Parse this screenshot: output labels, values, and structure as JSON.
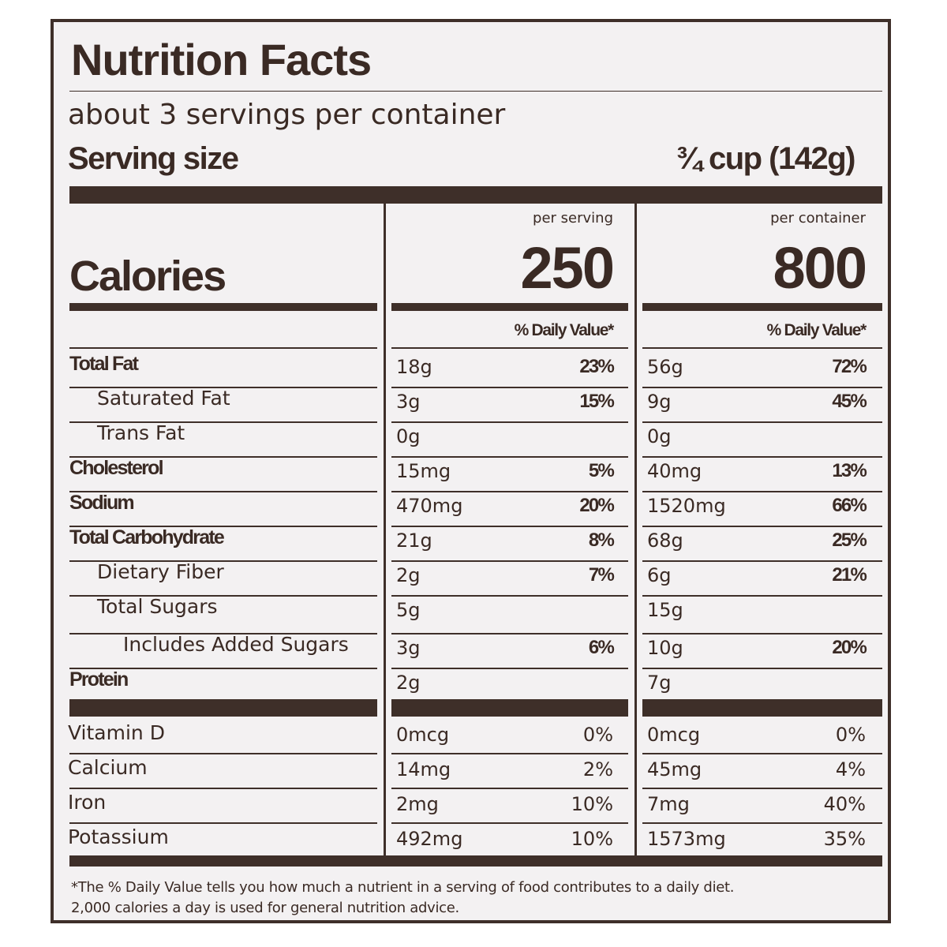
{
  "label": {
    "title": "Nutrition Facts",
    "servings_per_container": "about 3 servings per container",
    "serving_size_label": "Serving size",
    "serving_size_value": "¾ cup (142g)",
    "per_serving_label": "per serving",
    "per_container_label": "per container",
    "calories_label": "Calories",
    "calories_per_serving": "250",
    "calories_per_container": "800",
    "daily_value_header": "% Daily Value*",
    "nutrients": [
      {
        "name": "Total Fat",
        "serving_amount": "18g",
        "serving_dv": "23%",
        "container_amount": "56g",
        "container_dv": "72%"
      },
      {
        "name": "Saturated Fat",
        "serving_amount": "3g",
        "serving_dv": "15%",
        "container_amount": "9g",
        "container_dv": "45%"
      },
      {
        "name": "Trans  Fat",
        "serving_amount": "0g",
        "serving_dv": "",
        "container_amount": "0g",
        "container_dv": ""
      },
      {
        "name": "Cholesterol",
        "serving_amount": "15mg",
        "serving_dv": "5%",
        "container_amount": "40mg",
        "container_dv": "13%"
      },
      {
        "name": "Sodium",
        "serving_amount": "470mg",
        "serving_dv": "20%",
        "container_amount": "1520mg",
        "container_dv": "66%"
      },
      {
        "name": "Total Carbohydrate",
        "serving_amount": "21g",
        "serving_dv": "8%",
        "container_amount": "68g",
        "container_dv": "25%"
      },
      {
        "name": "Dietary Fiber",
        "serving_amount": "2g",
        "serving_dv": "7%",
        "container_amount": "6g",
        "container_dv": "21%"
      },
      {
        "name": "Total Sugars",
        "serving_amount": "5g",
        "serving_dv": "",
        "container_amount": "15g",
        "container_dv": ""
      },
      {
        "name": "Includes Added Sugars",
        "serving_amount": "3g",
        "serving_dv": "6%",
        "container_amount": "10g",
        "container_dv": "20%"
      },
      {
        "name": "Protein",
        "serving_amount": "2g",
        "serving_dv": "",
        "container_amount": "7g",
        "container_dv": ""
      }
    ],
    "vitamins": [
      {
        "name": "Vitamin D",
        "serving_amount": "0mcg",
        "serving_dv": "0%",
        "container_amount": "0mcg",
        "container_dv": "0%"
      },
      {
        "name": "Calcium",
        "serving_amount": "14mg",
        "serving_dv": "2%",
        "container_amount": "45mg",
        "container_dv": "4%"
      },
      {
        "name": "Iron",
        "serving_amount": "2mg",
        "serving_dv": "10%",
        "container_amount": "7mg",
        "container_dv": "40%"
      },
      {
        "name": "Potassium",
        "serving_amount": "492mg",
        "serving_dv": "10%",
        "container_amount": "1573mg",
        "container_dv": "35%"
      }
    ],
    "footnote_line1": "*The % Daily Value tells you how much a nutrient in a serving of food contributes to a daily diet.",
    "footnote_line2": "2,000 calories a day is used for general nutrition advice.",
    "colors": {
      "ink": "#3e2f29",
      "background": "#f3f1f2"
    }
  }
}
